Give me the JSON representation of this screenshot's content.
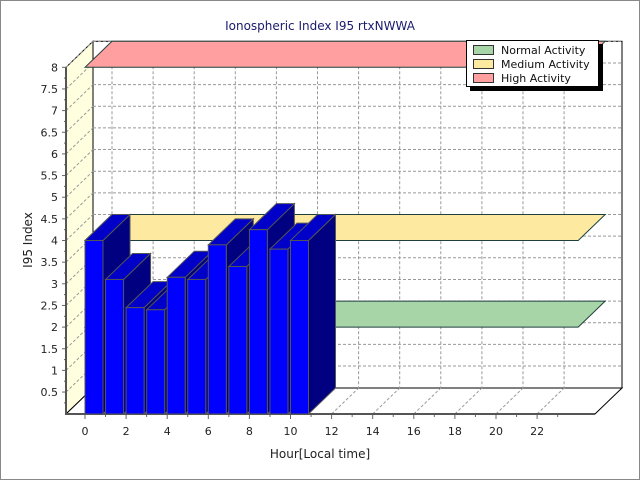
{
  "chart_data": {
    "type": "bar",
    "title": "Ionospheric Index I95 rtxNWWA",
    "xlabel": "Hour[Local time]",
    "ylabel": "I95 Index",
    "x": [
      0,
      1,
      2,
      3,
      4,
      5,
      6,
      7,
      8,
      9,
      10
    ],
    "series": [
      {
        "name": "I95 Index",
        "values": [
          4.0,
          3.1,
          2.45,
          2.4,
          3.15,
          3.1,
          3.9,
          3.4,
          4.25,
          3.8,
          4.0
        ],
        "color": "#0000ff"
      }
    ],
    "xlim": [
      0,
      24
    ],
    "ylim": [
      0,
      8
    ],
    "xticks": [
      "0",
      "2",
      "4",
      "6",
      "8",
      "10",
      "12",
      "14",
      "16",
      "18",
      "20",
      "22"
    ],
    "yticks": [
      "0.5",
      "1",
      "1.5",
      "2",
      "2.5",
      "3",
      "3.5",
      "4",
      "4.5",
      "5",
      "5.5",
      "6",
      "6.5",
      "7",
      "7.5",
      "8"
    ],
    "grid": true,
    "threshold_planes": [
      {
        "name": "Normal Activity",
        "value": 2,
        "color": "#a8d5a8"
      },
      {
        "name": "Medium Activity",
        "value": 4,
        "color": "#fde9a0"
      },
      {
        "name": "High Activity",
        "value": 8,
        "color": "#ff9f9f"
      }
    ],
    "legend_position": "top-right"
  }
}
